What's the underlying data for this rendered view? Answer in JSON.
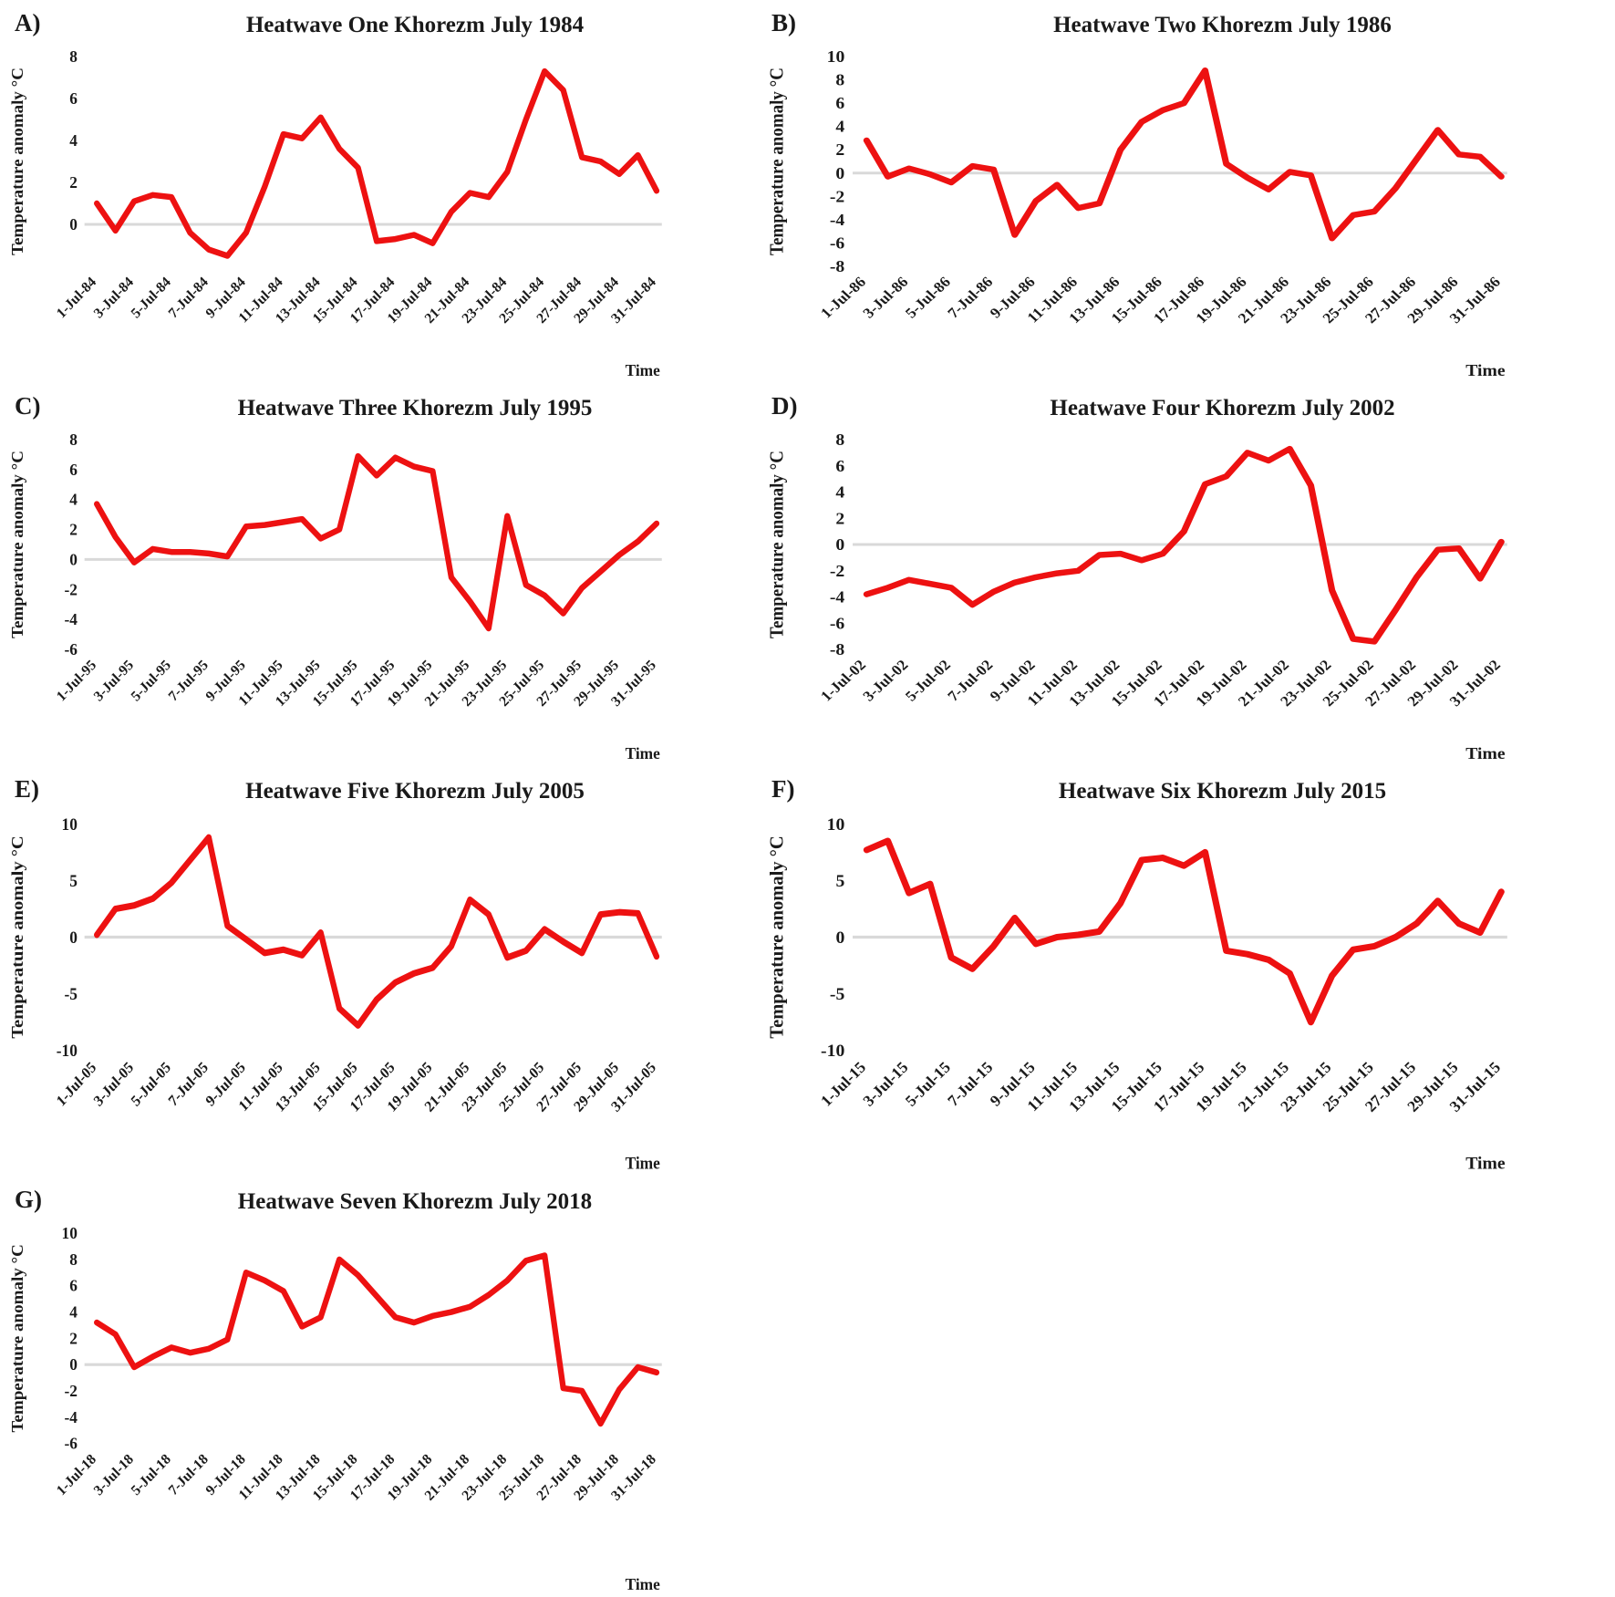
{
  "figure": {
    "line_color": "#ed1111",
    "zero_line_color": "#d9d9d9",
    "x_days": [
      1,
      2,
      3,
      4,
      5,
      6,
      7,
      8,
      9,
      10,
      11,
      12,
      13,
      14,
      15,
      16,
      17,
      18,
      19,
      20,
      21,
      22,
      23,
      24,
      25,
      26,
      27,
      28,
      29,
      30,
      31
    ]
  },
  "chart_data": [
    {
      "panel": "A)",
      "type": "line",
      "title": "Heatwave One Khorezm July 1984",
      "xlabel": "Time",
      "ylabel": "Temperature anomaly  °C",
      "ylim": [
        -2,
        8
      ],
      "yticks": [
        8,
        6,
        4,
        2,
        0
      ],
      "grid": "zero-line-only",
      "legend": "none",
      "x_tick_labels": [
        "1-Jul-84",
        "3-Jul-84",
        "5-Jul-84",
        "7-Jul-84",
        "9-Jul-84",
        "11-Jul-84",
        "13-Jul-84",
        "15-Jul-84",
        "17-Jul-84",
        "19-Jul-84",
        "21-Jul-84",
        "23-Jul-84",
        "25-Jul-84",
        "27-Jul-84",
        "29-Jul-84",
        "31-Jul-84"
      ],
      "values": [
        1.0,
        -0.3,
        1.1,
        1.4,
        1.3,
        -0.4,
        -1.2,
        -1.5,
        -0.4,
        1.8,
        4.3,
        4.1,
        5.1,
        3.6,
        2.7,
        -0.8,
        -0.7,
        -0.5,
        -0.9,
        0.6,
        1.5,
        1.3,
        2.5,
        5.0,
        7.3,
        6.4,
        3.2,
        3.0,
        2.4,
        3.3,
        1.6
      ]
    },
    {
      "panel": "B)",
      "type": "line",
      "title": "Heatwave Two Khorezm July 1986",
      "xlabel": "Time",
      "ylabel": "Temperature anomaly °C",
      "ylim": [
        -8,
        10
      ],
      "yticks": [
        10,
        8,
        6,
        4,
        2,
        0,
        -2,
        -4,
        -6,
        -8
      ],
      "grid": "zero-line-only",
      "legend": "none",
      "x_tick_labels": [
        "1-Jul-86",
        "3-Jul-86",
        "5-Jul-86",
        "7-Jul-86",
        "9-Jul-86",
        "11-Jul-86",
        "13-Jul-86",
        "15-Jul-86",
        "17-Jul-86",
        "19-Jul-86",
        "21-Jul-86",
        "23-Jul-86",
        "25-Jul-86",
        "27-Jul-86",
        "29-Jul-86",
        "31-Jul-86"
      ],
      "values": [
        2.8,
        -0.3,
        0.4,
        -0.1,
        -0.8,
        0.6,
        0.3,
        -5.3,
        -2.4,
        -1.0,
        -3.0,
        -2.6,
        2.0,
        4.4,
        5.4,
        6.0,
        8.8,
        0.8,
        -0.4,
        -1.4,
        0.1,
        -0.2,
        -5.6,
        -3.6,
        -3.3,
        -1.3,
        1.2,
        3.7,
        1.6,
        1.4,
        -0.3
      ]
    },
    {
      "panel": "C)",
      "type": "line",
      "title": "Heatwave Three Khorezm July 1995",
      "xlabel": "Time",
      "ylabel": "Temperature anomaly  °C",
      "ylim": [
        -6,
        8
      ],
      "yticks": [
        8,
        6,
        4,
        2,
        0,
        -2,
        -4,
        -6
      ],
      "grid": "zero-line-only",
      "legend": "none",
      "x_tick_labels": [
        "1-Jul-95",
        "3-Jul-95",
        "5-Jul-95",
        "7-Jul-95",
        "9-Jul-95",
        "11-Jul-95",
        "13-Jul-95",
        "15-Jul-95",
        "17-Jul-95",
        "19-Jul-95",
        "21-Jul-95",
        "23-Jul-95",
        "25-Jul-95",
        "27-Jul-95",
        "29-Jul-95",
        "31-Jul-95"
      ],
      "values": [
        3.7,
        1.5,
        -0.2,
        0.7,
        0.5,
        0.5,
        0.4,
        0.2,
        2.2,
        2.3,
        2.5,
        2.7,
        1.4,
        2.0,
        6.9,
        5.6,
        6.8,
        6.2,
        5.9,
        -1.2,
        -2.8,
        -4.6,
        2.9,
        -1.7,
        -2.4,
        -3.6,
        -1.9,
        -0.8,
        0.3,
        1.2,
        2.4
      ]
    },
    {
      "panel": "D)",
      "type": "line",
      "title": "Heatwave Four Khorezm July 2002",
      "xlabel": "Time",
      "ylabel": "Temperature anomaly  °C",
      "ylim": [
        -8,
        8
      ],
      "yticks": [
        8,
        6,
        4,
        2,
        0,
        -2,
        -4,
        -6,
        -8
      ],
      "grid": "zero-line-only",
      "legend": "none",
      "x_tick_labels": [
        "1-Jul-02",
        "3-Jul-02",
        "5-Jul-02",
        "7-Jul-02",
        "9-Jul-02",
        "11-Jul-02",
        "13-Jul-02",
        "15-Jul-02",
        "17-Jul-02",
        "19-Jul-02",
        "21-Jul-02",
        "23-Jul-02",
        "25-Jul-02",
        "27-Jul-02",
        "29-Jul-02",
        "31-Jul-02"
      ],
      "values": [
        -3.8,
        -3.3,
        -2.7,
        -3.0,
        -3.3,
        -4.6,
        -3.6,
        -2.9,
        -2.5,
        -2.2,
        -2.0,
        -0.8,
        -0.7,
        -1.2,
        -0.7,
        1.0,
        4.6,
        5.2,
        7.0,
        6.4,
        7.3,
        4.5,
        -3.5,
        -7.2,
        -7.4,
        -5.0,
        -2.5,
        -0.4,
        -0.3,
        -2.6,
        0.2
      ]
    },
    {
      "panel": "E)",
      "type": "line",
      "title": "Heatwave Five Khorezm July 2005",
      "xlabel": "Time",
      "ylabel": "Temperature anomaly  °C",
      "ylim": [
        -10,
        10
      ],
      "yticks": [
        10,
        5,
        0,
        -5,
        -10
      ],
      "grid": "zero-line-only",
      "legend": "none",
      "x_tick_labels": [
        "1-Jul-05",
        "3-Jul-05",
        "5-Jul-05",
        "7-Jul-05",
        "9-Jul-05",
        "11-Jul-05",
        "13-Jul-05",
        "15-Jul-05",
        "17-Jul-05",
        "19-Jul-05",
        "21-Jul-05",
        "23-Jul-05",
        "25-Jul-05",
        "27-Jul-05",
        "29-Jul-05",
        "31-Jul-05"
      ],
      "values": [
        0.2,
        2.5,
        2.8,
        3.4,
        4.8,
        6.8,
        8.8,
        1.0,
        -0.2,
        -1.4,
        -1.1,
        -1.6,
        0.4,
        -6.3,
        -7.8,
        -5.5,
        -4.0,
        -3.2,
        -2.7,
        -0.8,
        3.3,
        2.0,
        -1.8,
        -1.2,
        0.7,
        -0.4,
        -1.4,
        2.0,
        2.2,
        2.1,
        -1.7
      ]
    },
    {
      "panel": "F)",
      "type": "line",
      "title": "Heatwave Six Khorezm July 2015",
      "xlabel": "Time",
      "ylabel": "Temperature anomaly  °C",
      "ylim": [
        -10,
        10
      ],
      "yticks": [
        10,
        5,
        0,
        -5,
        -10
      ],
      "grid": "zero-line-only",
      "legend": "none",
      "x_tick_labels": [
        "1-Jul-15",
        "3-Jul-15",
        "5-Jul-15",
        "7-Jul-15",
        "9-Jul-15",
        "11-Jul-15",
        "13-Jul-15",
        "15-Jul-15",
        "17-Jul-15",
        "19-Jul-15",
        "21-Jul-15",
        "23-Jul-15",
        "25-Jul-15",
        "27-Jul-15",
        "29-Jul-15",
        "31-Jul-15"
      ],
      "values": [
        7.7,
        8.5,
        3.9,
        4.7,
        -1.8,
        -2.8,
        -0.8,
        1.7,
        -0.6,
        0.0,
        0.2,
        0.5,
        3.0,
        6.8,
        7.0,
        6.3,
        7.5,
        -1.2,
        -1.5,
        -2.0,
        -3.2,
        -7.5,
        -3.4,
        -1.1,
        -0.8,
        0.0,
        1.2,
        3.2,
        1.2,
        0.4,
        4.0
      ]
    },
    {
      "panel": "G)",
      "type": "line",
      "title": "Heatwave Seven Khorezm July 2018",
      "xlabel": "Time",
      "ylabel": "Temperature anomaly  °C",
      "ylim": [
        -6,
        10
      ],
      "yticks": [
        10,
        8,
        6,
        4,
        2,
        0,
        -2,
        -4,
        -6
      ],
      "grid": "zero-line-only",
      "legend": "none",
      "x_tick_labels": [
        "1-Jul-18",
        "3-Jul-18",
        "5-Jul-18",
        "7-Jul-18",
        "9-Jul-18",
        "11-Jul-18",
        "13-Jul-18",
        "15-Jul-18",
        "17-Jul-18",
        "19-Jul-18",
        "21-Jul-18",
        "23-Jul-18",
        "25-Jul-18",
        "27-Jul-18",
        "29-Jul-18",
        "31-Jul-18"
      ],
      "values": [
        3.2,
        2.3,
        -0.2,
        0.6,
        1.3,
        0.9,
        1.2,
        1.9,
        7.0,
        6.4,
        5.6,
        2.9,
        3.6,
        8.0,
        6.8,
        5.2,
        3.6,
        3.2,
        3.7,
        4.0,
        4.4,
        5.3,
        6.4,
        7.9,
        8.3,
        -1.8,
        -2.0,
        -4.5,
        -1.9,
        -0.2,
        -0.6
      ]
    }
  ]
}
